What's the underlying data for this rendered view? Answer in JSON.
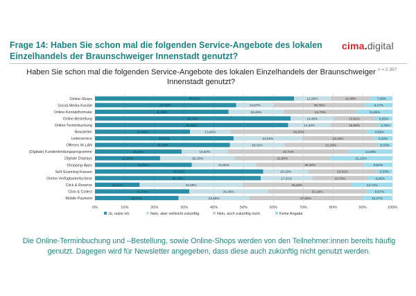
{
  "headline": "Frage 14: Haben Sie schon mal die folgenden Service-Angebote des lokalen Einzelhandels der Braunschweiger Innenstadt genutzt?",
  "logo": {
    "brand": "cima",
    "dot": ".",
    "suffix": "digital"
  },
  "sample_size": "n = 2.397",
  "footer_text": "Die Online-Terminbuchung und –Bestellung, sowie Online-Shops werden von den Teilnehmer:innen bereits häufig genutzt. Dagegen wird für Newsletter angegeben, dass diese auch zukünftig nicht genutzt werden.",
  "colors": {
    "series": [
      "#2a8fa6",
      "#c5dde4",
      "#c9c9c9",
      "#9fdbea"
    ],
    "headline": "#1f7f80",
    "brand": "#c8242b"
  },
  "chart_data": {
    "type": "bar",
    "orientation": "horizontal",
    "stacked": true,
    "title": "Haben Sie schon mal die folgenden Service-Angebote des lokalen Einzelhandels der Braunschweiger Innenstadt genutzt?",
    "xlim": [
      0,
      100
    ],
    "xticks": [
      "0%",
      "10%",
      "20%",
      "30%",
      "40%",
      "50%",
      "60%",
      "70%",
      "80%",
      "90%",
      "100%"
    ],
    "grid": true,
    "legend_position": "bottom",
    "categories": [
      "Online-Shops",
      "Social-Media-Kanäle",
      "Online-Kontaktformular",
      "Online-Bestellung",
      "Online-Terminbuchung",
      "Newsletter",
      "Lieferservice",
      "Offenes W-LAN",
      "(Digitale) Kundenbindungsprogramme",
      "Digitale Displays",
      "Shopping-Apps",
      "Self-Scanning-Kassen",
      "Online-Verfügbarkeitscheck",
      "Click & Reserve",
      "Click & Collect",
      "Mobile Payment"
    ],
    "series": [
      {
        "name": "Ja, nutze ich.",
        "values": [
          66.93,
          47.5,
          44.89,
          65.78,
          64.96,
          31.94,
          46.6,
          45.37,
          29.16,
          21.9,
          32.52,
          56.55,
          55.73,
          15.01,
          31.7,
          28.07
        ]
      },
      {
        "name": "Nein, aber vielleicht zukünftig.",
        "values": [
          12.29,
          12.57,
          18.49,
          14.48,
          14.2,
          13.66,
          23.03,
          18.31,
          15.5,
          25.15,
          21.65,
          15.19,
          17.31,
          34.59,
          26.45,
          23.86
        ]
      },
      {
        "name": "Nein, auch zukünftig nicht.",
        "values": [
          13.49,
          30.76,
          24.76,
          13.91,
          16.09,
          45.83,
          24.15,
          31.29,
          40.72,
          31.84,
          36.3,
          22.92,
          18.7,
          36.69,
          33.18,
          37.8
        ]
      },
      {
        "name": "Keine Angabe",
        "values": [
          7.28,
          9.17,
          11.86,
          5.82,
          4.76,
          8.58,
          6.22,
          5.03,
          14.59,
          21.12,
          9.52,
          5.33,
          8.25,
          13.71,
          8.67,
          10.27
        ]
      }
    ],
    "labels": [
      [
        "66,93%",
        "12,29%",
        "13,49%",
        "7,28%"
      ],
      [
        "47,50%",
        "12,57%",
        "30,76%",
        "9,17%"
      ],
      [
        "44,89%",
        "18,49%",
        "24,76%",
        "11,86%"
      ],
      [
        "65,78%",
        "14,48%",
        "13,91%",
        "5,82%"
      ],
      [
        "64,96%",
        "14,20%",
        "16,09%",
        "4,76%"
      ],
      [
        "31,94%",
        "13,66%",
        "45,83%",
        "8,58%"
      ],
      [
        "46,60%",
        "23,03%",
        "24,15%",
        "6,22%"
      ],
      [
        "45,37%",
        "18,31%",
        "31,29%",
        "5,03%"
      ],
      [
        "29,16%",
        "15,50%",
        "40,72%",
        "14,59%"
      ],
      [
        "21,90%",
        "25,15%",
        "31,84%",
        "21,12%"
      ],
      [
        "32,52%",
        "21,65%",
        "36,30%",
        "9,52%"
      ],
      [
        "56,55%",
        "15,19%",
        "22,92%",
        "5,33%"
      ],
      [
        "55,73%",
        "17,31%",
        "18,70%",
        "8,25%"
      ],
      [
        "15,01%",
        "34,59%",
        "36,69%",
        "13,71%"
      ],
      [
        "31,70%",
        "26,45%",
        "33,18%",
        "8,67%"
      ],
      [
        "28,07%",
        "23,86%",
        "37,80%",
        "10,27%"
      ]
    ]
  }
}
